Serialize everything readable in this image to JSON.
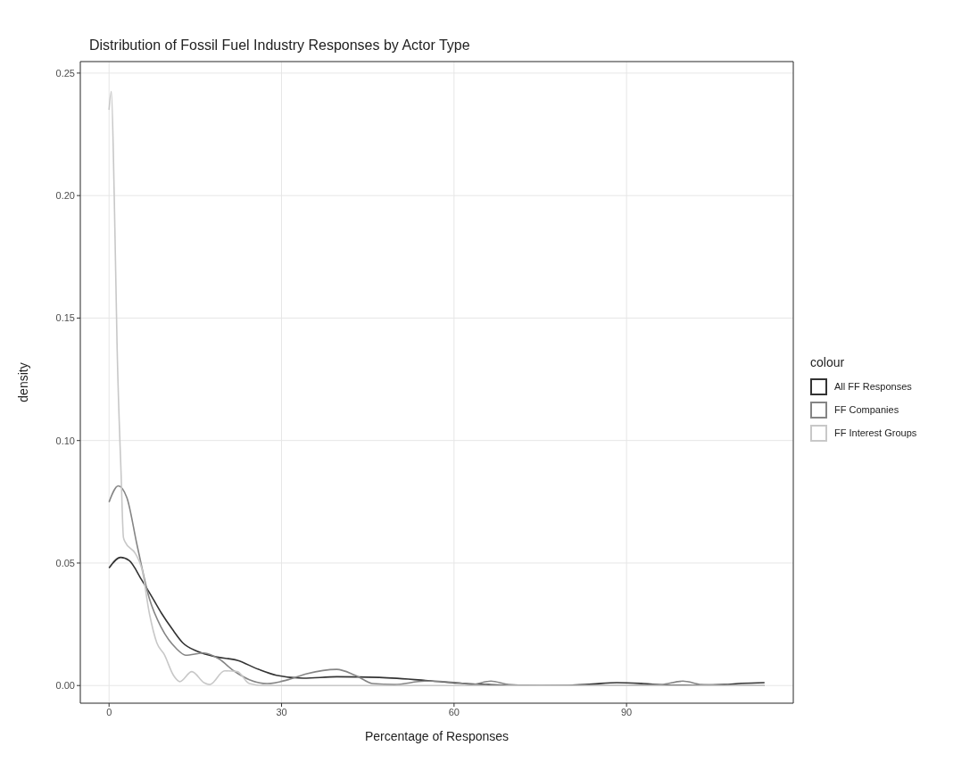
{
  "chart_data": {
    "type": "line",
    "title": "Distribution of Fossil Fuel Industry Responses by Actor Type",
    "xlabel": "Percentage of Responses",
    "ylabel": "density",
    "legend_title": "colour",
    "series": [
      {
        "name": "All FF Responses",
        "color": "#333333",
        "x": [
          0,
          2,
          3.5,
          5.7,
          7.5,
          9.1,
          11,
          12.8,
          15.4,
          18.6,
          22.3,
          26,
          29.1,
          33.8,
          39.6,
          47,
          55,
          60.5,
          66,
          70,
          75,
          80,
          84,
          88.3,
          93,
          97,
          102,
          107,
          110,
          114
        ],
        "values": [
          0.048,
          0.0523,
          0.051,
          0.043,
          0.036,
          0.0296,
          0.023,
          0.0175,
          0.0139,
          0.0117,
          0.0103,
          0.0066,
          0.0042,
          0.003,
          0.0036,
          0.0033,
          0.0021,
          0.001,
          0.0004,
          0.0001,
          0,
          0.0001,
          0.0006,
          0.0012,
          0.0008,
          0.0002,
          0.0001,
          0.0004,
          0.0009,
          0.0012
        ]
      },
      {
        "name": "FF Companies",
        "color": "#858585",
        "x": [
          0,
          1.6,
          3.1,
          4.9,
          7,
          9.1,
          11.7,
          13.3,
          16.5,
          19.1,
          21.7,
          24.4,
          27.5,
          31.2,
          34.4,
          39.6,
          42.8,
          45.9,
          49.6,
          54.9,
          60.6,
          63,
          66.4,
          69.5,
          73,
          80,
          90,
          96,
          99.8,
          103,
          107,
          114
        ],
        "values": [
          0.0749,
          0.0815,
          0.0767,
          0.057,
          0.0356,
          0.0236,
          0.0151,
          0.0124,
          0.0133,
          0.0109,
          0.006,
          0.0024,
          0.0008,
          0.0024,
          0.0048,
          0.0066,
          0.0042,
          0.0008,
          0.0004,
          0.0018,
          0.0012,
          0.0004,
          0.0018,
          0.0004,
          0,
          0,
          0,
          0.0004,
          0.0018,
          0.0004,
          0,
          0
        ]
      },
      {
        "name": "FF Interest Groups",
        "color": "#c8c8c8",
        "x": [
          0,
          0.4,
          0.9,
          1.4,
          2.1,
          2.5,
          2.8,
          4.6,
          5.7,
          7,
          8.3,
          9.6,
          11.2,
          12.3,
          14.4,
          16.5,
          17.5,
          20.1,
          22.3,
          24.4,
          27,
          40,
          60,
          80,
          100,
          114
        ],
        "values": [
          0.235,
          0.2425,
          0.2,
          0.138,
          0.086,
          0.0605,
          0.0586,
          0.0538,
          0.0477,
          0.0296,
          0.0175,
          0.0127,
          0.0042,
          0.0016,
          0.0057,
          0.0012,
          0.0004,
          0.006,
          0.0057,
          0.0008,
          0,
          0,
          0,
          0,
          0,
          0
        ]
      }
    ],
    "xlim": [
      -5,
      119
    ],
    "xticks": [
      0,
      30,
      60,
      90
    ],
    "ylim": [
      -0.0072,
      0.2547
    ],
    "yticks": [
      {
        "value": 0,
        "label": "0.00"
      },
      {
        "value": 0.05,
        "label": "0.05"
      },
      {
        "value": 0.1,
        "label": "0.10"
      },
      {
        "value": 0.15,
        "label": "0.15"
      },
      {
        "value": 0.2,
        "label": "0.20"
      },
      {
        "value": 0.25,
        "label": "0.25"
      }
    ],
    "grid": true,
    "legend": "right"
  }
}
